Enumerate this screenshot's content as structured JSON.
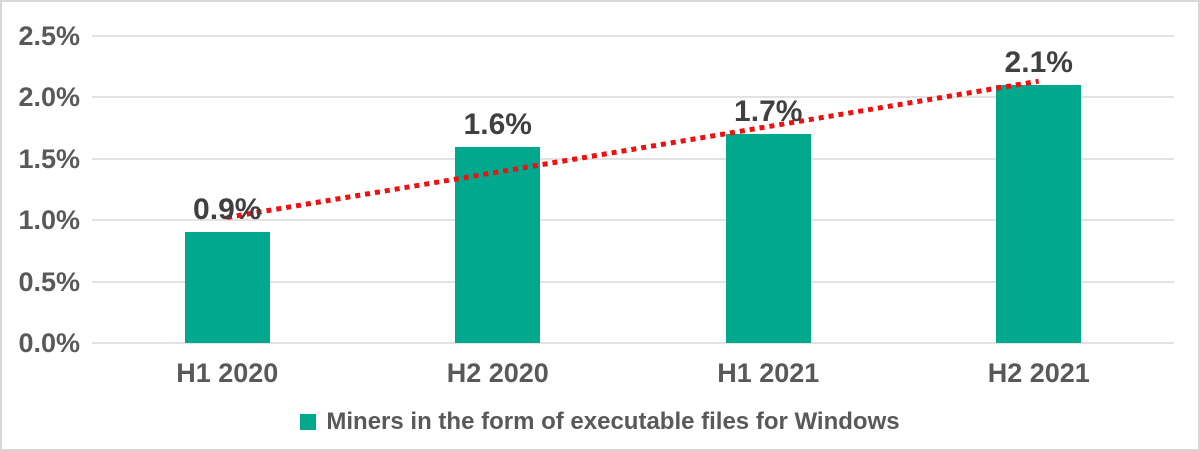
{
  "chart_data": {
    "type": "bar",
    "title": "",
    "categories": [
      "H1 2020",
      "H2 2020",
      "H1 2021",
      "H2 2021"
    ],
    "values": [
      0.9,
      1.6,
      1.7,
      2.1
    ],
    "data_labels": [
      "0.9%",
      "1.6%",
      "1.7%",
      "2.1%"
    ],
    "series": [
      {
        "name": "Miners in the form of executable files for Windows",
        "values": [
          0.9,
          1.6,
          1.7,
          2.1
        ],
        "color": "#00A88E"
      }
    ],
    "xlabel": "",
    "ylabel": "",
    "ylim": [
      0,
      2.5
    ],
    "yticks": [
      0,
      0.5,
      1,
      1.5,
      2,
      2.5
    ],
    "ytick_labels": [
      "0.0%",
      "0.5%",
      "1.0%",
      "1.5%",
      "2.0%",
      "2.5%"
    ],
    "grid": true,
    "legend": {
      "label": "Miners in the form of executable files for Windows",
      "position": "bottom",
      "swatch_color": "#00A88E"
    },
    "trendline": {
      "type": "linear",
      "style": "dotted",
      "color": "#EE1111"
    }
  },
  "colors": {
    "bar": "#00A88E",
    "trendline": "#EE1111",
    "axis_text": "#595959",
    "data_label_text": "#404040",
    "gridline": "#E2E2E2",
    "border": "#D7D7D7",
    "background": "#FFFFFF"
  }
}
